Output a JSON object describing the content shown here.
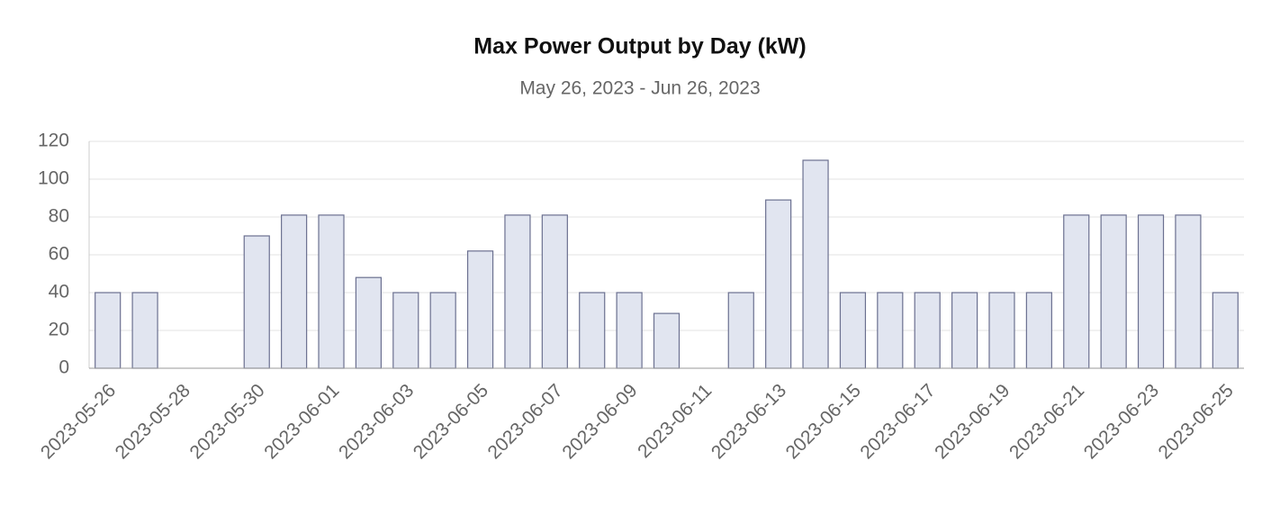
{
  "chart_data": {
    "type": "bar",
    "title": "Max Power Output by Day (kW)",
    "subtitle": "May 26, 2023 - Jun 26, 2023",
    "categories": [
      "2023-05-26",
      null,
      "2023-05-28",
      null,
      "2023-05-30",
      null,
      "2023-06-01",
      null,
      "2023-06-03",
      null,
      "2023-06-05",
      null,
      "2023-06-07",
      null,
      "2023-06-09",
      null,
      "2023-06-11",
      null,
      "2023-06-13",
      null,
      "2023-06-15",
      null,
      "2023-06-17",
      null,
      "2023-06-19",
      null,
      "2023-06-21",
      null,
      "2023-06-23",
      null,
      "2023-06-25"
    ],
    "values": [
      40,
      40,
      null,
      null,
      70,
      81,
      81,
      48,
      40,
      40,
      62,
      81,
      81,
      40,
      40,
      29,
      null,
      40,
      89,
      110,
      40,
      40,
      40,
      40,
      40,
      40,
      81,
      81,
      81,
      81,
      40
    ],
    "color": "#e1e5f0",
    "ylim": [
      0,
      120
    ],
    "yticks": [
      0,
      20,
      40,
      60,
      80,
      100,
      120
    ],
    "grid": true
  }
}
